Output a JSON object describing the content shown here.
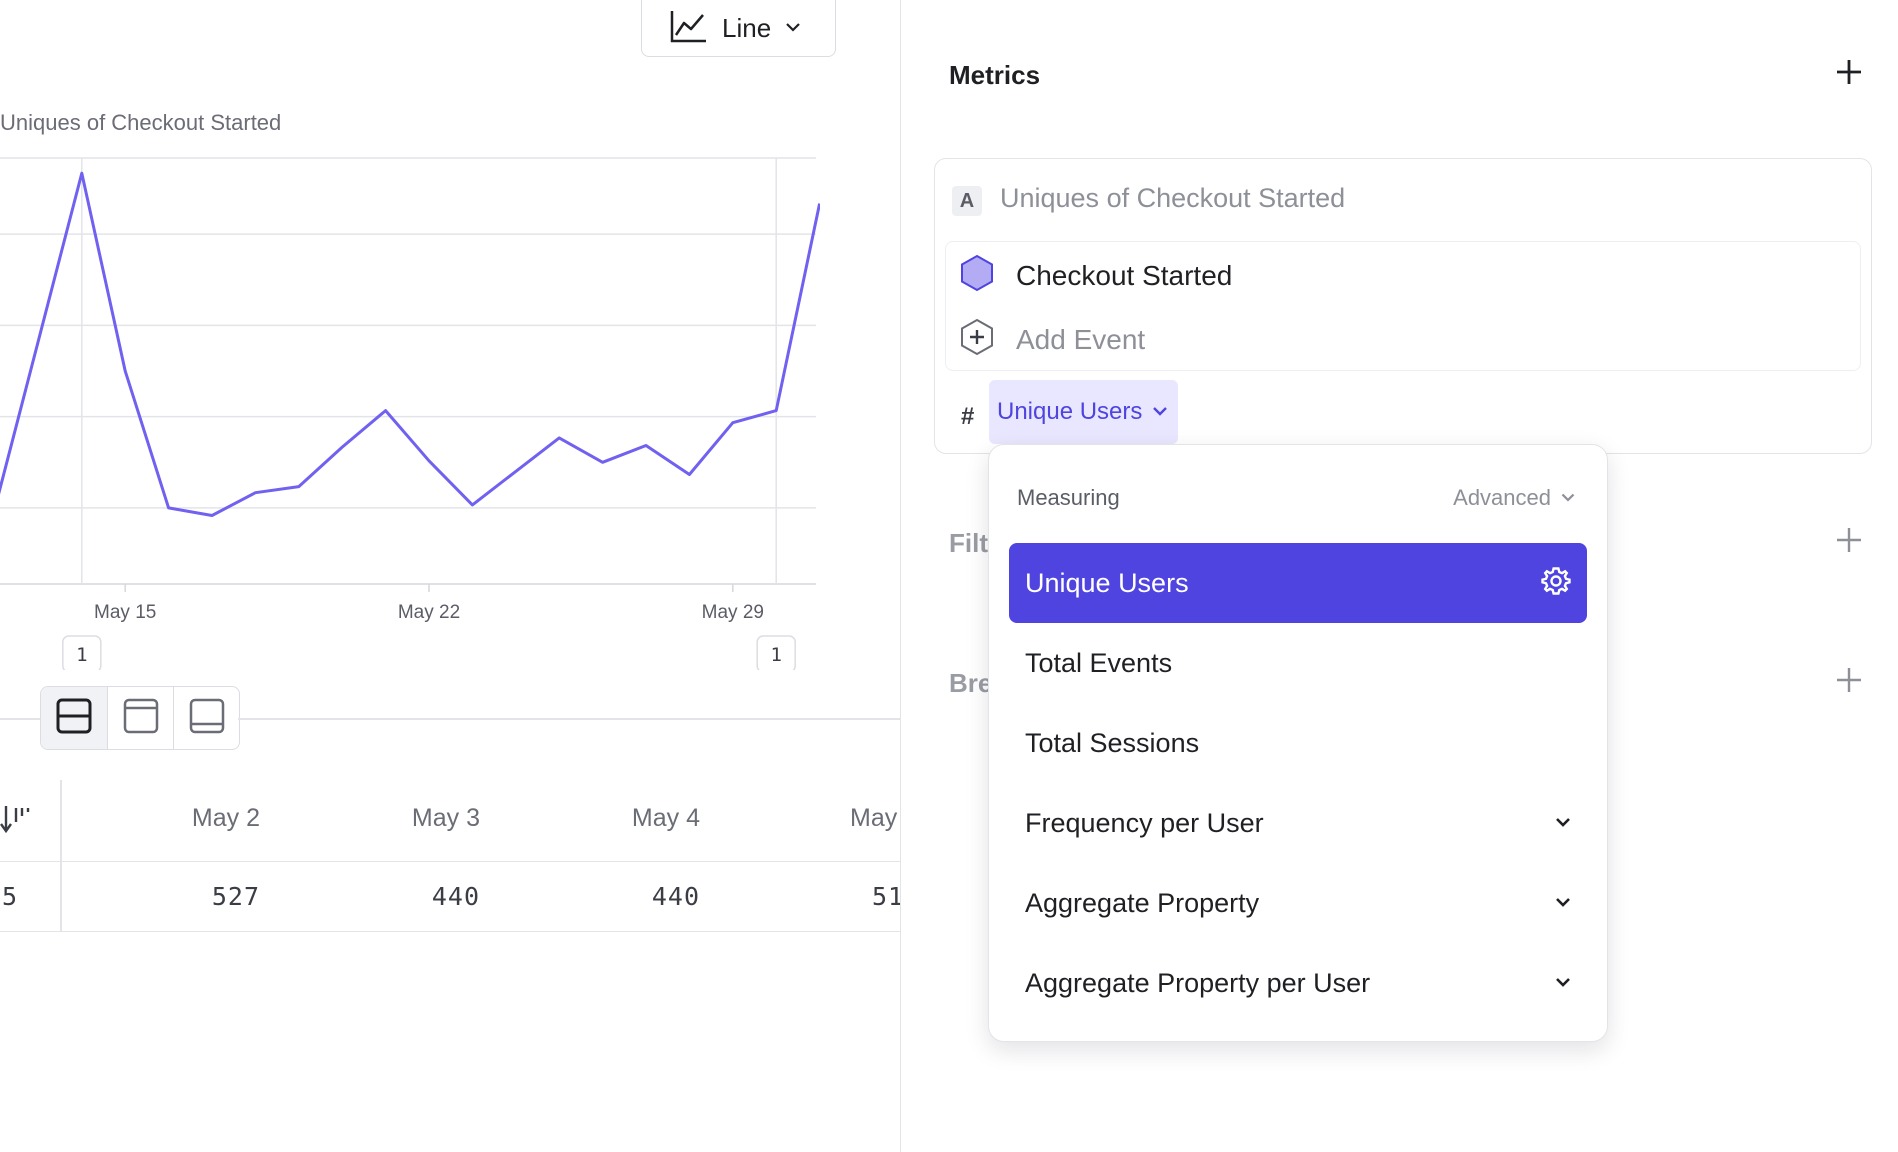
{
  "toolbar": {
    "chart_type_label": "Line"
  },
  "chart": {
    "title": "Uniques of Checkout Started"
  },
  "chart_data": {
    "type": "line",
    "title": "Uniques of Checkout Started",
    "xlabel": "",
    "ylabel": "",
    "x_tick_labels": [
      "May 15",
      "May 22",
      "May 29"
    ],
    "annotation_markers": [
      "1",
      "1"
    ],
    "grid": true,
    "series": [
      {
        "color": "#7061f0",
        "values": [
          420,
          530,
          640,
          510,
          420,
          415,
          430,
          434,
          460,
          484,
          451,
          422,
          444,
          466,
          450,
          461,
          442,
          476,
          484,
          620
        ]
      }
    ]
  },
  "view_toggle": {
    "icons": [
      "split-view-icon",
      "top-view-icon",
      "bottom-view-icon"
    ],
    "active": 0
  },
  "table": {
    "headers": [
      "May 2",
      "May 3",
      "May 4",
      "May"
    ],
    "row_first_cell": ".5",
    "row": [
      "527",
      "440",
      "440",
      "51"
    ]
  },
  "panel": {
    "metrics_title": "Metrics",
    "filter_title_partial": "Filt",
    "breakdown_title_partial": "Bre"
  },
  "metric": {
    "letter": "A",
    "name": "Uniques of Checkout Started",
    "event": "Checkout Started",
    "add_event": "Add Event",
    "hash": "#",
    "measure": "Unique Users"
  },
  "menu": {
    "header": "Measuring",
    "advanced": "Advanced",
    "items": [
      {
        "label": "Unique Users",
        "selected": true,
        "icon": "gear-icon"
      },
      {
        "label": "Total Events"
      },
      {
        "label": "Total Sessions"
      },
      {
        "label": "Frequency per User",
        "icon": "chevron-down-icon"
      },
      {
        "label": "Aggregate Property",
        "icon": "chevron-down-icon"
      },
      {
        "label": "Aggregate Property per User",
        "icon": "chevron-down-icon"
      }
    ]
  },
  "colors": {
    "accent": "#4f44e0",
    "line": "#7061f0",
    "event_hex": "#b3acf5"
  }
}
